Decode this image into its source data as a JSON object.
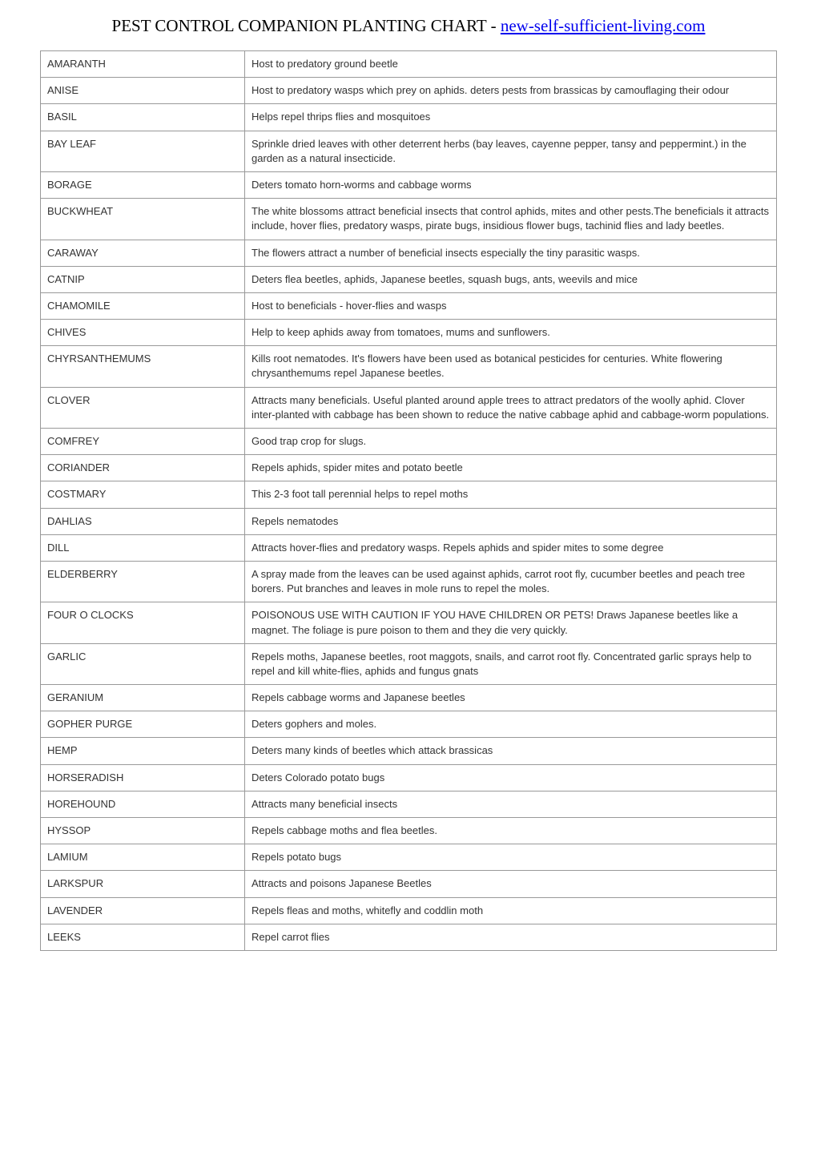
{
  "title_prefix": "PEST CONTROL COMPANION PLANTING CHART - ",
  "title_link": "new-self-sufficient-living.com",
  "rows": [
    {
      "plant": "AMARANTH",
      "desc": "Host to predatory ground beetle"
    },
    {
      "plant": "ANISE",
      "desc": "Host to predatory wasps which prey on aphids. deters pests from brassicas by camouflaging their odour"
    },
    {
      "plant": "BASIL",
      "desc": "Helps repel thrips flies and mosquitoes"
    },
    {
      "plant": "BAY LEAF",
      "desc": "Sprinkle dried leaves with other deterrent herbs (bay leaves, cayenne pepper, tansy and peppermint.) in the garden as a natural insecticide."
    },
    {
      "plant": "BORAGE",
      "desc": "Deters tomato horn-worms and cabbage worms"
    },
    {
      "plant": "BUCKWHEAT",
      "desc": "The white blossoms attract beneficial insects that control aphids, mites and other pests.The beneficials it attracts include, hover flies, predatory wasps, pirate bugs, insidious flower bugs, tachinid flies and lady beetles."
    },
    {
      "plant": "CARAWAY",
      "desc": "The flowers attract a number of beneficial insects especially the tiny parasitic wasps."
    },
    {
      "plant": "CATNIP",
      "desc": "Deters flea beetles, aphids, Japanese beetles, squash bugs, ants, weevils and mice"
    },
    {
      "plant": "CHAMOMILE",
      "desc": "Host to beneficials - hover-flies and wasps"
    },
    {
      "plant": "CHIVES",
      "desc": "Help to keep aphids away from tomatoes, mums and sunflowers."
    },
    {
      "plant": "CHYRSANTHEMUMS",
      "desc": "Kills root nematodes. It's flowers have been used as botanical pesticides for centuries. White flowering chrysanthemums repel Japanese beetles."
    },
    {
      "plant": "CLOVER",
      "desc": "Attracts many beneficials. Useful planted around apple trees to attract predators of the woolly aphid. Clover inter-planted with cabbage has been shown to reduce the native cabbage aphid and cabbage-worm populations."
    },
    {
      "plant": "COMFREY",
      "desc": "Good trap crop for slugs."
    },
    {
      "plant": "CORIANDER",
      "desc": "Repels aphids, spider mites and potato beetle"
    },
    {
      "plant": "COSTMARY",
      "desc": "This 2-3 foot tall perennial helps to repel moths"
    },
    {
      "plant": "DAHLIAS",
      "desc": "Repels nematodes"
    },
    {
      "plant": "DILL",
      "desc": "Attracts hover-flies and predatory wasps. Repels aphids and spider mites to some degree"
    },
    {
      "plant": "ELDERBERRY",
      "desc": "A spray made from the leaves can be used against aphids, carrot root fly, cucumber beetles and peach tree borers. Put branches and leaves in mole runs to repel the moles."
    },
    {
      "plant": "FOUR O CLOCKS",
      "desc": "POISONOUS USE WITH CAUTION IF YOU HAVE CHILDREN OR PETS! Draws Japanese beetles like a magnet. The foliage is pure poison to them and they die very quickly."
    },
    {
      "plant": "GARLIC",
      "desc": "Repels moths, Japanese beetles, root maggots, snails, and carrot root fly. Concentrated garlic sprays help to repel and kill white-flies, aphids and fungus gnats"
    },
    {
      "plant": "GERANIUM",
      "desc": "Repels cabbage worms and Japanese beetles"
    },
    {
      "plant": "GOPHER PURGE",
      "desc": "Deters gophers and moles."
    },
    {
      "plant": "HEMP",
      "desc": "Deters many kinds of beetles which attack brassicas"
    },
    {
      "plant": "HORSERADISH",
      "desc": "Deters Colorado potato bugs"
    },
    {
      "plant": "HOREHOUND",
      "desc": "Attracts many beneficial insects"
    },
    {
      "plant": "HYSSOP",
      "desc": "Repels cabbage moths and flea beetles."
    },
    {
      "plant": "LAMIUM",
      "desc": "Repels potato bugs"
    },
    {
      "plant": "LARKSPUR",
      "desc": "Attracts and poisons Japanese Beetles"
    },
    {
      "plant": "LAVENDER",
      "desc": "Repels fleas and moths, whitefly and coddlin moth"
    },
    {
      "plant": "LEEKS",
      "desc": "Repel carrot flies"
    }
  ]
}
